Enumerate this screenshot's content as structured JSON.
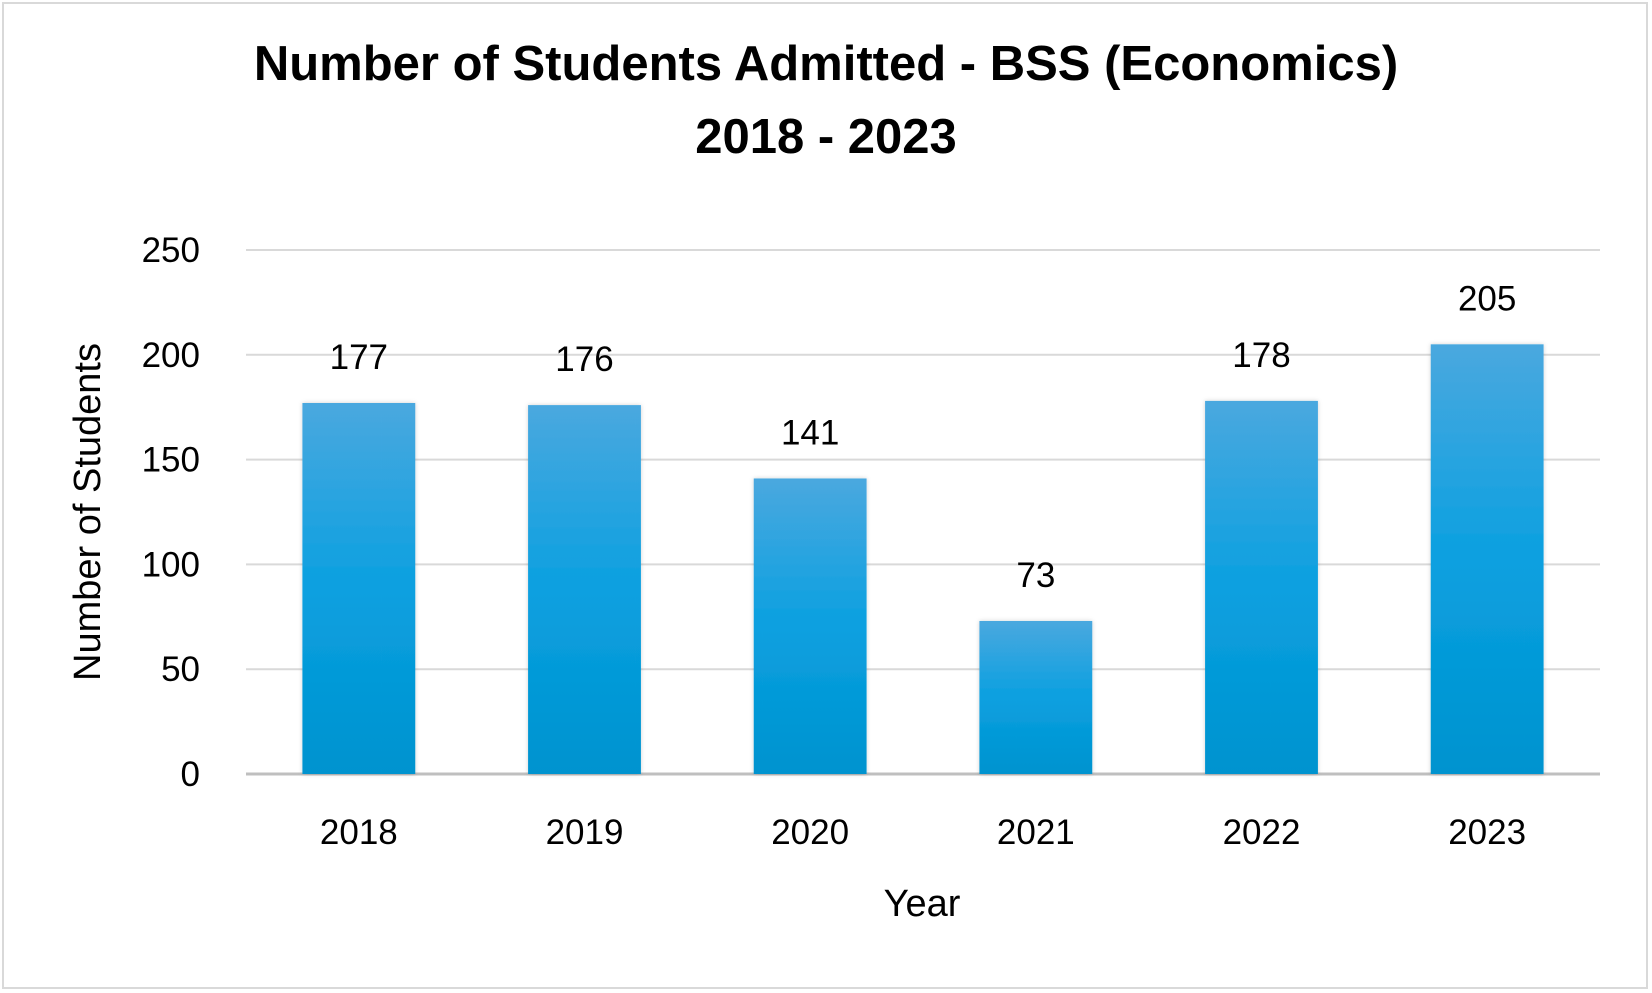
{
  "chart_data": {
    "type": "bar",
    "title_line1": "Number of Students Admitted - BSS (Economics)",
    "title_line2": "2018 - 2023",
    "xlabel": "Year",
    "ylabel": "Number of Students",
    "categories": [
      "2018",
      "2019",
      "2020",
      "2021",
      "2022",
      "2023"
    ],
    "values": [
      177,
      176,
      141,
      73,
      178,
      205
    ],
    "ylim": [
      0,
      250
    ],
    "yticks": [
      0,
      50,
      100,
      150,
      200,
      250
    ],
    "grid": true,
    "legend": "none",
    "colors": {
      "bar_top": "#4aa8df",
      "bar_mid": "#0aa0e0",
      "bar_bottom": "#0093cf",
      "grid": "#d9d9d9",
      "axis": "#bfbfbf"
    }
  }
}
